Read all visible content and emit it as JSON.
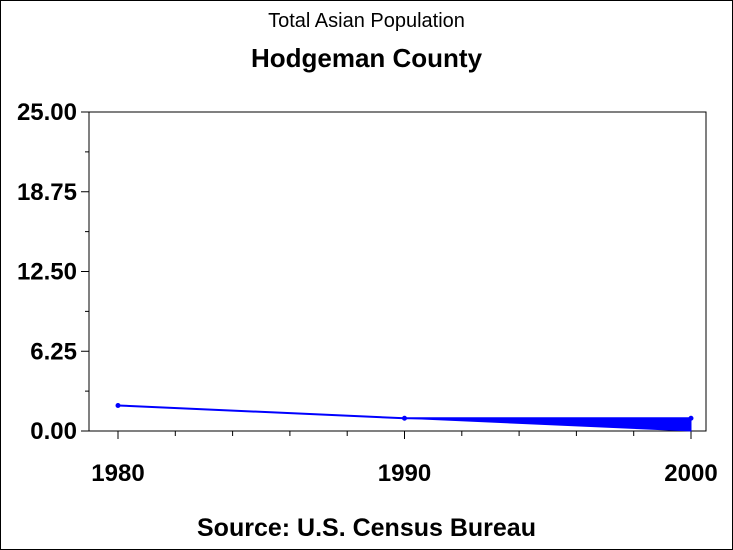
{
  "chart_data": {
    "type": "line",
    "title": "Hodgeman County",
    "subtitle": "Total Asian Population",
    "source": "Source: U.S. Census Bureau",
    "x": [
      1980,
      1990,
      2000
    ],
    "series": [
      {
        "values": [
          2,
          1,
          1
        ]
      }
    ],
    "band": {
      "x": [
        1990,
        2000
      ],
      "upper": [
        1,
        1
      ],
      "lower": [
        1,
        0
      ]
    },
    "xlim": [
      1980,
      2000
    ],
    "ylim": [
      0,
      25
    ],
    "xticks": [
      "1980",
      "1990",
      "2000"
    ],
    "yticks": [
      "0.00",
      "6.25",
      "12.50",
      "18.75",
      "25.00"
    ],
    "yticks_values": [
      0,
      6.25,
      12.5,
      18.75,
      25
    ],
    "grid": false,
    "color": "#0000ff"
  }
}
